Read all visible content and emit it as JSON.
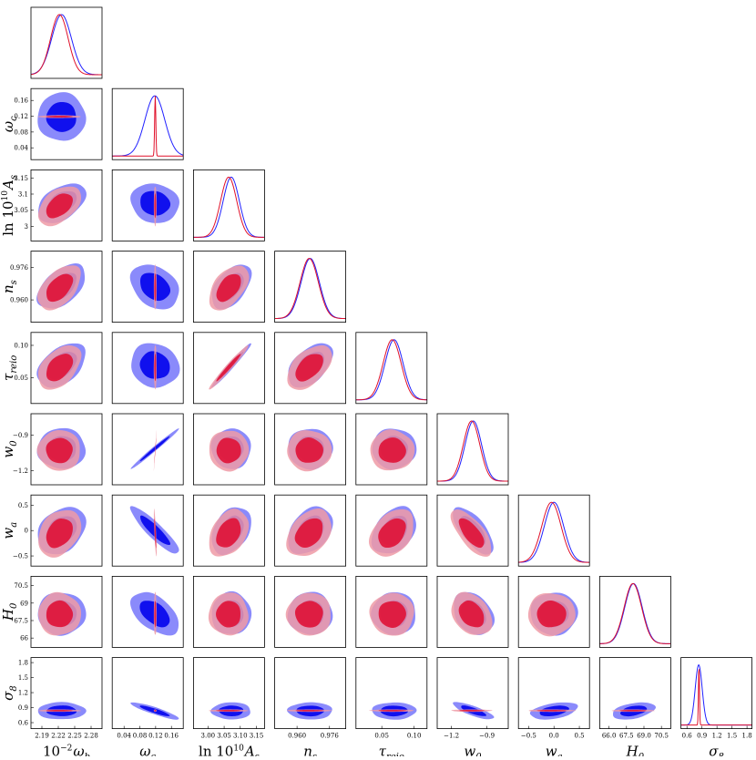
{
  "chart_data": {
    "type": "corner",
    "grid": false,
    "series": [
      {
        "color": "#2020ff"
      },
      {
        "color": "#e0102a"
      }
    ],
    "params": [
      {
        "label": "10^{-2}ω_b",
        "main": "10",
        "sup": "−2",
        "italic": "ω",
        "sub": "b",
        "range": [
          2.17,
          2.3
        ],
        "ticks": [
          2.19,
          2.22,
          2.25,
          2.28
        ],
        "tick_labels": [
          "2.19",
          "2.22",
          "2.25",
          "2.28"
        ],
        "center": [
          2.226,
          2.222
        ],
        "sigma": [
          0.018,
          0.016
        ]
      },
      {
        "label": "ω_c",
        "main": "",
        "sup": "",
        "italic": "ω",
        "sub": "c",
        "range": [
          0.01,
          0.19
        ],
        "ticks": [
          0.04,
          0.08,
          0.12,
          0.16
        ],
        "tick_labels": [
          "0.04",
          "0.08",
          "0.12",
          "0.16"
        ],
        "center": [
          0.118,
          0.119
        ],
        "sigma": [
          0.025,
          0.0015
        ]
      },
      {
        "label": "ln10^{10}A_s",
        "main": "ln 10",
        "sup": "10",
        "italic": "A",
        "sub": "s",
        "range": [
          2.955,
          3.175
        ],
        "ticks": [
          3.0,
          3.05,
          3.1,
          3.15
        ],
        "tick_labels": [
          "3.00",
          "3.05",
          "3.10",
          "3.15"
        ],
        "yticks": [
          3.0,
          3.05,
          3.1,
          3.15
        ],
        "ytick_labels": [
          "3",
          "3.05",
          "3.1",
          "3.15"
        ],
        "center": [
          3.072,
          3.064
        ],
        "sigma": [
          0.025,
          0.025
        ]
      },
      {
        "label": "n_s",
        "main": "",
        "sup": "",
        "italic": "n",
        "sub": "s",
        "range": [
          0.949,
          0.984
        ],
        "ticks": [
          0.96,
          0.976
        ],
        "tick_labels": [
          "0.960",
          "0.976"
        ],
        "center": [
          0.9665,
          0.966
        ],
        "sigma": [
          0.0045,
          0.0045
        ]
      },
      {
        "label": "τ_reio",
        "main": "",
        "sup": "",
        "italic": "τ",
        "sub": "reio",
        "range": [
          0.01,
          0.12
        ],
        "ticks": [
          0.05,
          0.1
        ],
        "tick_labels": [
          "0.05",
          "0.10"
        ],
        "center": [
          0.069,
          0.066
        ],
        "sigma": [
          0.014,
          0.014
        ]
      },
      {
        "label": "w_0",
        "main": "",
        "sup": "",
        "italic": "w",
        "sub": "0",
        "range": [
          -1.32,
          -0.72
        ],
        "ticks": [
          -1.2,
          -0.9
        ],
        "tick_labels": [
          "−1.2",
          "−0.9"
        ],
        "center": [
          -1.015,
          -1.03
        ],
        "sigma": [
          0.07,
          0.07
        ]
      },
      {
        "label": "w_a",
        "main": "",
        "sup": "",
        "italic": "w",
        "sub": "a",
        "range": [
          -0.7,
          0.7
        ],
        "ticks": [
          -0.5,
          0.0,
          0.5
        ],
        "tick_labels": [
          "−0.5",
          "0.0",
          "0.5"
        ],
        "yticks": [
          -0.5,
          0.0,
          0.5
        ],
        "ytick_labels": [
          "−0.5",
          "0",
          "0.5"
        ],
        "center": [
          0.0,
          -0.05
        ],
        "sigma": [
          0.19,
          0.19
        ]
      },
      {
        "label": "H_0",
        "main": "",
        "sup": "",
        "italic": "H",
        "sub": "0",
        "range": [
          65.2,
          71.3
        ],
        "ticks": [
          66.0,
          67.5,
          69.0,
          70.5
        ],
        "tick_labels": [
          "66.0",
          "67.5",
          "69.0",
          "70.5"
        ],
        "yticks": [
          66.0,
          67.5,
          69.0,
          70.5
        ],
        "ytick_labels": [
          "66",
          "67.5",
          "69",
          "70.5"
        ],
        "center": [
          68.1,
          68.05
        ],
        "sigma": [
          0.75,
          0.75
        ]
      },
      {
        "label": "σ_8",
        "main": "",
        "sup": "",
        "italic": "σ",
        "sub": "8",
        "range": [
          0.48,
          1.9
        ],
        "ticks": [
          0.6,
          0.9,
          1.2,
          1.5,
          1.8
        ],
        "tick_labels": [
          "0.6",
          "0.9",
          "1.2",
          "1.5",
          "1.8"
        ],
        "center": [
          0.835,
          0.84
        ],
        "sigma": [
          0.07,
          0.01
        ]
      }
    ],
    "correlations": {
      "1-0": [
        0.0,
        0.0
      ],
      "2-0": [
        0.45,
        0.45
      ],
      "3-0": [
        0.5,
        0.5
      ],
      "4-0": [
        0.45,
        0.45
      ],
      "5-0": [
        0.0,
        0.0
      ],
      "6-0": [
        0.3,
        0.3
      ],
      "7-0": [
        0.0,
        0.0
      ],
      "8-0": [
        0.0,
        0.0
      ],
      "2-1": [
        -0.1,
        0.0
      ],
      "3-1": [
        -0.3,
        0.0
      ],
      "4-1": [
        -0.1,
        0.0
      ],
      "5-1": [
        0.99,
        0.99
      ],
      "6-1": [
        -0.9,
        -0.8
      ],
      "7-1": [
        -0.5,
        0.0
      ],
      "8-1": [
        -0.9,
        0.0
      ],
      "3-2": [
        0.5,
        0.5
      ],
      "4-2": [
        0.98,
        0.98
      ],
      "5-2": [
        0.0,
        0.0
      ],
      "6-2": [
        0.35,
        0.35
      ],
      "7-2": [
        0.0,
        0.0
      ],
      "8-2": [
        0.0,
        0.0
      ],
      "4-3": [
        0.5,
        0.5
      ],
      "5-3": [
        0.0,
        0.0
      ],
      "6-3": [
        0.35,
        0.35
      ],
      "7-3": [
        0.0,
        0.0
      ],
      "8-3": [
        0.0,
        0.0
      ],
      "5-4": [
        0.0,
        0.0
      ],
      "6-4": [
        0.35,
        0.35
      ],
      "7-4": [
        0.0,
        0.0
      ],
      "8-4": [
        0.0,
        0.0
      ],
      "6-5": [
        -0.7,
        -0.7
      ],
      "7-5": [
        -0.3,
        -0.3
      ],
      "8-5": [
        -0.8,
        0.0
      ],
      "7-6": [
        0.0,
        0.0
      ],
      "8-6": [
        0.4,
        0.0
      ],
      "8-7": [
        0.4,
        0.0
      ]
    }
  }
}
